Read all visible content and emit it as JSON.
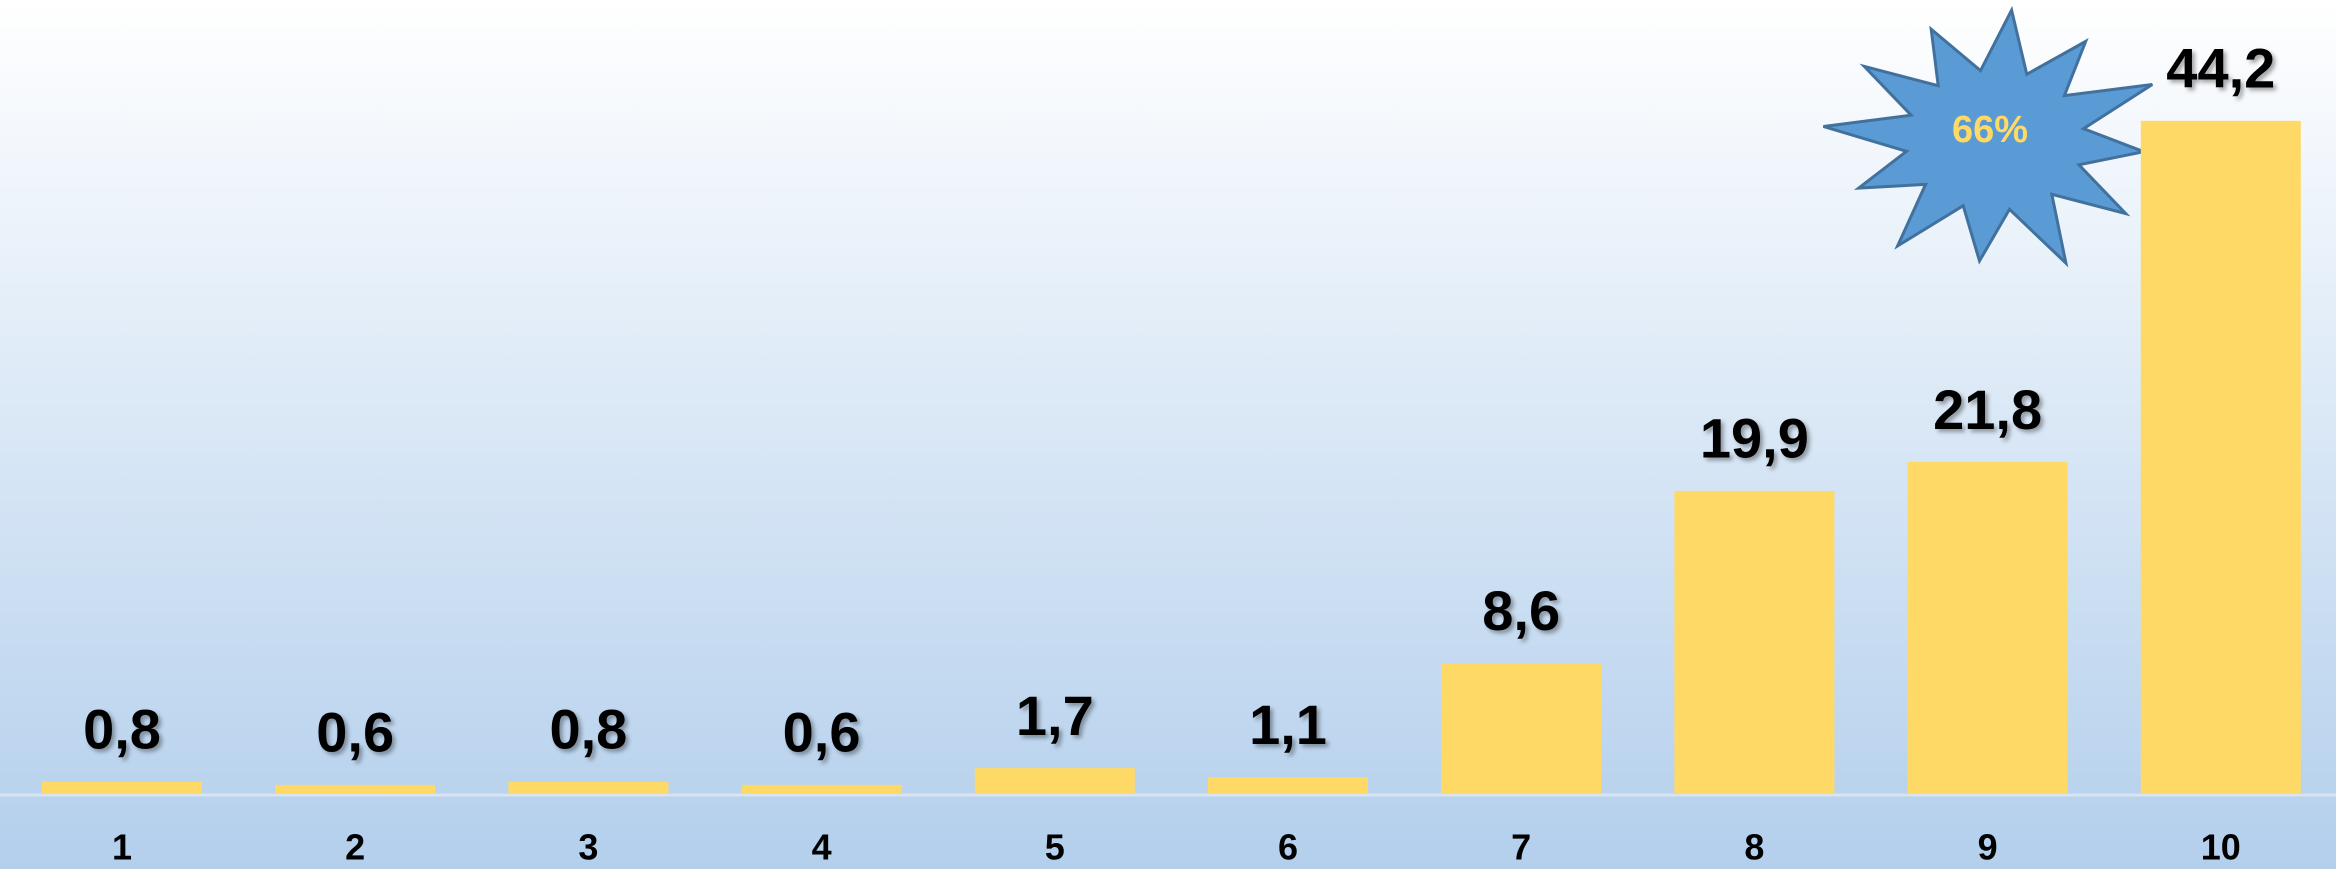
{
  "chart_data": {
    "type": "bar",
    "categories": [
      "1",
      "2",
      "3",
      "4",
      "5",
      "6",
      "7",
      "8",
      "9",
      "10"
    ],
    "values": [
      0.8,
      0.6,
      0.8,
      0.6,
      1.7,
      1.1,
      8.6,
      19.9,
      21.8,
      44.2
    ],
    "value_labels": [
      "0,8",
      "0,6",
      "0,8",
      "0,6",
      "1,7",
      "1,1",
      "8,6",
      "19,9",
      "21,8",
      "44,2"
    ],
    "color": "#ffd966",
    "ylim": [
      0,
      52
    ],
    "annotation": "66%"
  }
}
